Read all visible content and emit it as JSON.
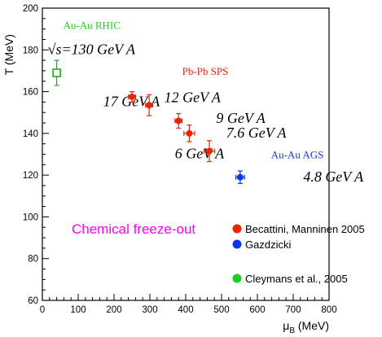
{
  "chart_data": {
    "type": "scatter",
    "title": "",
    "xlabel": {
      "base": "μ",
      "sub": "B",
      "unit": " (MeV)"
    },
    "ylabel": "T (MeV)",
    "xlim": [
      0,
      800
    ],
    "ylim": [
      60,
      200
    ],
    "x_ticks": [
      0,
      100,
      200,
      300,
      400,
      500,
      600,
      700,
      800
    ],
    "y_ticks": [
      60,
      80,
      100,
      120,
      140,
      160,
      180,
      200
    ],
    "grid": false,
    "series": [
      {
        "marker": "open-square",
        "color": "#22aa22",
        "points": [
          {
            "x": 40,
            "y": 169,
            "xerr": 10,
            "yerr": 6
          }
        ]
      },
      {
        "marker": "filled-circle",
        "color": "#ee2200",
        "points": [
          {
            "x": 250,
            "y": 157.5,
            "xerr": 10,
            "yerr": 2.5
          },
          {
            "x": 298,
            "y": 153.5,
            "xerr": 10,
            "yerr": 5
          },
          {
            "x": 380,
            "y": 146,
            "xerr": 10,
            "yerr": 3.5
          },
          {
            "x": 410,
            "y": 140,
            "xerr": 15,
            "yerr": 4
          },
          {
            "x": 466,
            "y": 131.5,
            "xerr": 15,
            "yerr": 5
          }
        ]
      },
      {
        "marker": "filled-circle",
        "color": "#1133ee",
        "points": [
          {
            "x": 552,
            "y": 119,
            "xerr": 12,
            "yerr": 3
          }
        ]
      }
    ],
    "annotations": [
      {
        "text": "Au-Au RHIC",
        "x": 58,
        "y": 190,
        "style": "serif",
        "color": "#22cc22"
      },
      {
        "text": "√s=130 GeV A",
        "x": 15,
        "y": 178,
        "style": "italic",
        "color": "#000000"
      },
      {
        "text": "Pb-Pb SPS",
        "x": 390,
        "y": 168,
        "style": "serif",
        "color": "#ee2200"
      },
      {
        "text": "17 GeV A",
        "x": 170,
        "y": 153,
        "style": "italic",
        "color": "#000000"
      },
      {
        "text": "12 GeV A",
        "x": 340,
        "y": 155,
        "style": "italic",
        "color": "#000000"
      },
      {
        "text": "9 GeV A",
        "x": 485,
        "y": 145,
        "style": "italic",
        "color": "#000000"
      },
      {
        "text": "7.6 GeV A",
        "x": 513,
        "y": 138,
        "style": "italic",
        "color": "#000000"
      },
      {
        "text": "6 GeV A",
        "x": 370,
        "y": 128,
        "style": "italic",
        "color": "#000000"
      },
      {
        "text": "Au-Au AGS",
        "x": 638,
        "y": 128,
        "style": "serif",
        "color": "#1133ee"
      },
      {
        "text": "4.8 GeV A",
        "x": 728,
        "y": 117,
        "style": "italic",
        "color": "#000000"
      }
    ],
    "headline": {
      "text": "Chemical freeze-out",
      "color": "#ff00ff"
    },
    "legend": {
      "position": "bottom-right",
      "entries": [
        {
          "label": "Becattini, Manninen 2005",
          "color": "#ee2200"
        },
        {
          "label": "Gazdzicki",
          "color": "#1133ee"
        },
        {
          "label": "Cleymans et al., 2005",
          "color": "#22cc22"
        }
      ]
    }
  }
}
